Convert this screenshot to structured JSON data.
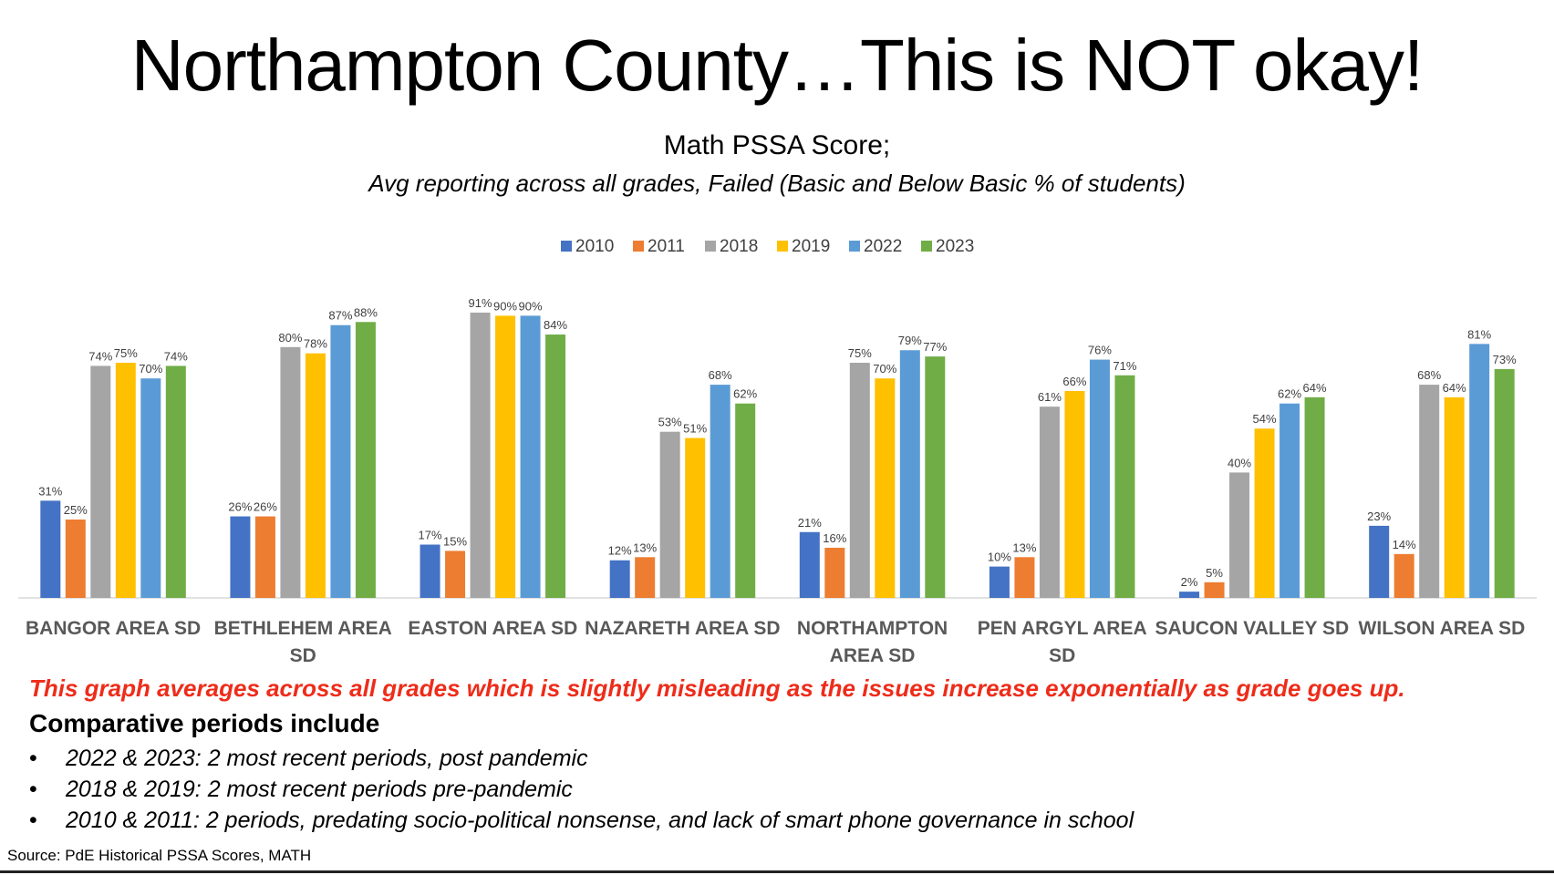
{
  "slide": {
    "title": "Northampton County…This is NOT okay!",
    "subtitle": "Math PSSA Score;",
    "subtitle_detail": "Avg reporting  across  all grades,  Failed (Basic and Below Basic % of students)",
    "warning": "This graph averages across  all  grades which is slightly misleading as the issues increase exponentially as grade goes up.",
    "periods_heading": "Comparative periods include",
    "periods": [
      "2022 & 2023: 2 most recent periods, post pandemic",
      "2018 & 2019: 2 most recent periods pre-pandemic",
      "2010 & 2011: 2 periods, predating socio-political nonsense, and lack of smart phone governance in school"
    ],
    "bullet": "•",
    "source": "Source: PdE Historical PSSA Scores, MATH"
  },
  "chart_data": {
    "type": "bar",
    "title": "Math PSSA Score;",
    "categories": [
      [
        "BANGOR AREA SD"
      ],
      [
        "BETHLEHEM AREA",
        "SD"
      ],
      [
        "EASTON AREA SD"
      ],
      [
        "NAZARETH AREA SD"
      ],
      [
        "NORTHAMPTON",
        "AREA SD"
      ],
      [
        "PEN ARGYL AREA",
        "SD"
      ],
      [
        "SAUCON VALLEY SD"
      ],
      [
        "WILSON AREA SD"
      ]
    ],
    "series": [
      {
        "name": "2010",
        "color": "#4472c4",
        "values": [
          31,
          26,
          17,
          12,
          21,
          10,
          2,
          23
        ]
      },
      {
        "name": "2011",
        "color": "#ed7d31",
        "values": [
          25,
          26,
          15,
          13,
          16,
          13,
          5,
          14
        ]
      },
      {
        "name": "2018",
        "color": "#a5a5a5",
        "values": [
          74,
          80,
          91,
          53,
          75,
          61,
          40,
          68
        ]
      },
      {
        "name": "2019",
        "color": "#ffc000",
        "values": [
          75,
          78,
          90,
          51,
          70,
          66,
          54,
          64
        ]
      },
      {
        "name": "2022",
        "color": "#5b9bd5",
        "values": [
          70,
          87,
          90,
          68,
          79,
          76,
          62,
          81
        ]
      },
      {
        "name": "2023",
        "color": "#70ad47",
        "values": [
          74,
          88,
          84,
          62,
          77,
          71,
          64,
          73
        ]
      }
    ],
    "value_suffix": "%",
    "ylim": [
      0,
      100
    ],
    "grid": false,
    "legend": "top-center"
  }
}
